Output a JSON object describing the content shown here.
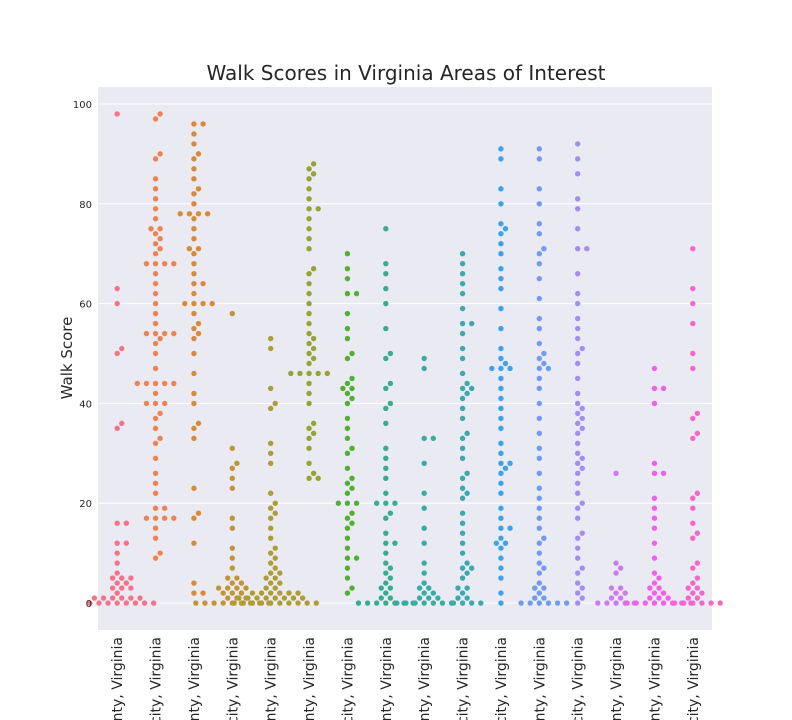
{
  "chart_data": {
    "type": "swarm",
    "title": "Walk Scores in Virginia Areas of Interest",
    "y_label": "Walk Score",
    "categories": [
      "ounty, Virginia",
      "a city, Virginia",
      "ounty, Virginia",
      "e city, Virginia",
      "ounty, Virginia",
      "ounty, Virginia",
      "n city, Virginia",
      "ounty, Virginia",
      "ounty, Virginia",
      "s city, Virginia",
      "k city, Virginia",
      "ounty, Virginia",
      "d city, Virginia",
      "ounty, Virginia",
      "ounty, Virginia",
      "h city, Virginia"
    ],
    "colors": [
      "#f77189",
      "#f0824f",
      "#dc8932",
      "#c39532",
      "#ae9d31",
      "#97a431",
      "#50b131",
      "#34ae91",
      "#36ada4",
      "#38aab0",
      "#3ba3ec",
      "#6e9bf4",
      "#a48cf4",
      "#cc7af4",
      "#f45cf2",
      "#f565cc"
    ],
    "values": [
      [
        0,
        0,
        0,
        0,
        0,
        0,
        0,
        0,
        1,
        1,
        1,
        1,
        1,
        1,
        2,
        3,
        3,
        3,
        4,
        4,
        5,
        5,
        5,
        6,
        8,
        10,
        12,
        12,
        16,
        16,
        35,
        36,
        50,
        51,
        60,
        63,
        98
      ],
      [
        9,
        10,
        13,
        15,
        17,
        17,
        17,
        17,
        19,
        19,
        22,
        24,
        26,
        29,
        32,
        33,
        35,
        37,
        38,
        40,
        40,
        40,
        42,
        44,
        44,
        44,
        44,
        44,
        47,
        50,
        52,
        53,
        54,
        54,
        54,
        54,
        56,
        58,
        60,
        62,
        64,
        66,
        68,
        68,
        68,
        68,
        70,
        71,
        72,
        73,
        74,
        75,
        75,
        77,
        79,
        81,
        83,
        85,
        89,
        90,
        97,
        98
      ],
      [
        2,
        2,
        4,
        12,
        17,
        18,
        23,
        33,
        35,
        36,
        40,
        42,
        46,
        50,
        53,
        54,
        55,
        56,
        58,
        60,
        60,
        60,
        60,
        62,
        64,
        64,
        66,
        68,
        70,
        71,
        71,
        73,
        75,
        77,
        78,
        78,
        78,
        78,
        80,
        82,
        83,
        85,
        87,
        89,
        90,
        92,
        94,
        96,
        96
      ],
      [
        0,
        0,
        0,
        0,
        0,
        0,
        0,
        0,
        0,
        1,
        1,
        1,
        2,
        2,
        2,
        3,
        3,
        3,
        3,
        4,
        4,
        5,
        5,
        7,
        9,
        11,
        15,
        17,
        23,
        25,
        27,
        28,
        31,
        58
      ],
      [
        0,
        0,
        0,
        0,
        0,
        0,
        0,
        0,
        0,
        0,
        1,
        1,
        1,
        1,
        1,
        1,
        1,
        1,
        2,
        2,
        2,
        2,
        2,
        2,
        3,
        3,
        4,
        4,
        5,
        5,
        6,
        6,
        7,
        8,
        9,
        10,
        11,
        13,
        15,
        17,
        18,
        19,
        20,
        22,
        28,
        30,
        32,
        39,
        40,
        43,
        51,
        53
      ],
      [
        25,
        25,
        26,
        28,
        31,
        33,
        34,
        35,
        36,
        40,
        42,
        44,
        46,
        46,
        46,
        46,
        46,
        48,
        49,
        50,
        51,
        52,
        53,
        54,
        56,
        58,
        60,
        62,
        64,
        66,
        67,
        71,
        73,
        75,
        77,
        79,
        79,
        81,
        83,
        85,
        86,
        87,
        88
      ],
      [
        2,
        3,
        5,
        7,
        9,
        9,
        11,
        13,
        15,
        16,
        17,
        18,
        20,
        20,
        20,
        22,
        23,
        24,
        25,
        27,
        30,
        31,
        33,
        35,
        37,
        40,
        41,
        42,
        43,
        43,
        44,
        45,
        49,
        50,
        53,
        55,
        58,
        62,
        62,
        65,
        67,
        70
      ],
      [
        0,
        0,
        0,
        0,
        0,
        0,
        0,
        1,
        1,
        2,
        3,
        3,
        4,
        5,
        6,
        7,
        8,
        10,
        12,
        12,
        14,
        17,
        18,
        20,
        20,
        20,
        22,
        25,
        27,
        29,
        31,
        36,
        39,
        40,
        43,
        44,
        49,
        50,
        55,
        60,
        63,
        66,
        68,
        75
      ],
      [
        0,
        0,
        0,
        0,
        0,
        0,
        0,
        1,
        1,
        1,
        2,
        2,
        3,
        3,
        4,
        6,
        8,
        12,
        15,
        19,
        22,
        28,
        33,
        33,
        47,
        49
      ],
      [
        0,
        0,
        0,
        0,
        1,
        1,
        2,
        3,
        3,
        5,
        6,
        7,
        7,
        8,
        10,
        12,
        14,
        16,
        18,
        21,
        22,
        23,
        25,
        26,
        29,
        31,
        33,
        34,
        37,
        39,
        41,
        42,
        43,
        43,
        44,
        46,
        49,
        51,
        54,
        56,
        56,
        59,
        62,
        64,
        66,
        68,
        70
      ],
      [
        0,
        2,
        5,
        7,
        9,
        11,
        12,
        12,
        13,
        15,
        15,
        17,
        19,
        22,
        24,
        26,
        27,
        28,
        28,
        30,
        32,
        35,
        37,
        39,
        41,
        43,
        45,
        47,
        47,
        47,
        48,
        49,
        51,
        55,
        59,
        63,
        65,
        67,
        70,
        72,
        74,
        75,
        76,
        80,
        83,
        89,
        91
      ],
      [
        0,
        0,
        0,
        0,
        0,
        0,
        1,
        1,
        2,
        3,
        3,
        4,
        6,
        7,
        8,
        10,
        12,
        13,
        15,
        17,
        19,
        21,
        23,
        26,
        29,
        31,
        34,
        37,
        40,
        43,
        45,
        47,
        47,
        48,
        49,
        50,
        52,
        55,
        57,
        61,
        65,
        68,
        70,
        71,
        74,
        76,
        80,
        83,
        89,
        91
      ],
      [
        0,
        1,
        2,
        3,
        4,
        6,
        7,
        9,
        11,
        13,
        14,
        17,
        19,
        20,
        22,
        24,
        26,
        27,
        28,
        29,
        30,
        32,
        34,
        35,
        36,
        37,
        38,
        39,
        40,
        42,
        45,
        48,
        50,
        51,
        53,
        55,
        57,
        60,
        62,
        66,
        71,
        71,
        75,
        79,
        81,
        86,
        89,
        92
      ],
      [
        0,
        0,
        0,
        0,
        0,
        1,
        1,
        2,
        2,
        3,
        3,
        6,
        7,
        8,
        26
      ],
      [
        0,
        0,
        0,
        0,
        0,
        0,
        0,
        0,
        1,
        1,
        1,
        2,
        2,
        3,
        3,
        4,
        5,
        6,
        9,
        12,
        15,
        17,
        19,
        21,
        26,
        26,
        28,
        40,
        43,
        43,
        47
      ],
      [
        0,
        0,
        0,
        0,
        0,
        0,
        1,
        1,
        2,
        2,
        3,
        3,
        4,
        5,
        7,
        8,
        13,
        14,
        16,
        19,
        21,
        22,
        33,
        34,
        37,
        38,
        47,
        50,
        56,
        60,
        63,
        71
      ]
    ],
    "ylim": [
      -5.4,
      103.4
    ],
    "yticks": [
      0,
      20,
      40,
      60,
      80,
      100
    ],
    "grid": true
  }
}
